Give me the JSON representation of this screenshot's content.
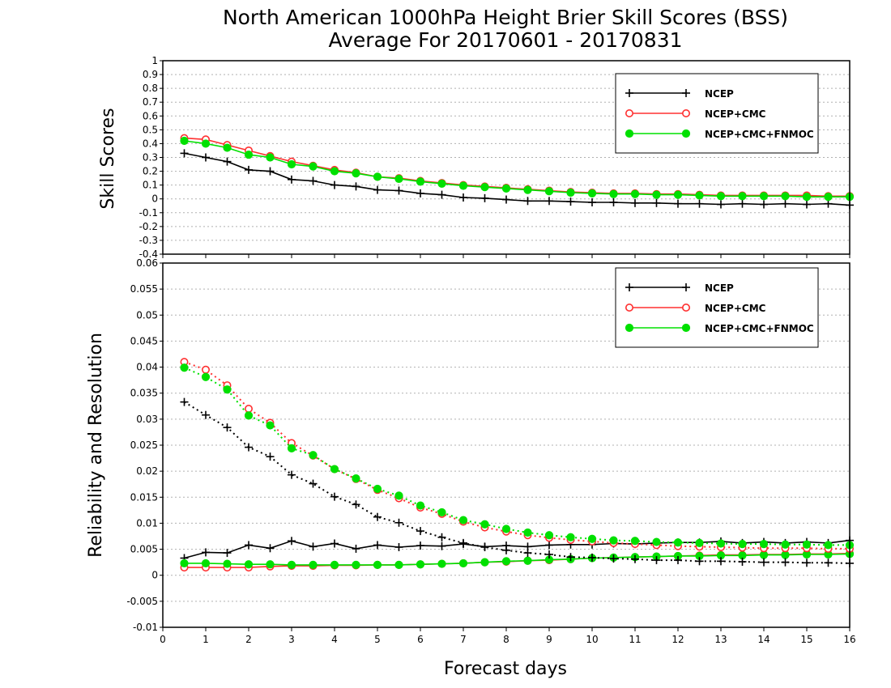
{
  "chart_title": {
    "line1": "North American 1000hPa Height Brier Skill Scores (BSS)",
    "line2": "Average For 20170601 - 20170831"
  },
  "xlabel": "Forecast days",
  "chart_data": [
    {
      "type": "line",
      "title": "",
      "ylabel": "Skill Scores",
      "xlim": [
        0,
        16
      ],
      "ylim": [
        -0.4,
        1
      ],
      "xticks": [
        "0",
        "1",
        "2",
        "3",
        "4",
        "5",
        "6",
        "7",
        "8",
        "9",
        "10",
        "11",
        "12",
        "13",
        "14",
        "15",
        "16"
      ],
      "yticks": [
        "-0.4",
        "-0.3",
        "-0.2",
        "-0.1",
        "0",
        "0.1",
        "0.2",
        "0.3",
        "0.4",
        "0.5",
        "0.6",
        "0.7",
        "0.8",
        "0.9",
        "1"
      ],
      "grid": "dotted horizontal",
      "legend": {
        "placement": "top-right",
        "entries": [
          "NCEP",
          "NCEP+CMC",
          "NCEP+CMC+FNMOC"
        ]
      },
      "x": [
        0.5,
        1,
        1.5,
        2,
        2.5,
        3,
        3.5,
        4,
        4.5,
        5,
        5.5,
        6,
        6.5,
        7,
        7.5,
        8,
        8.5,
        9,
        9.5,
        10,
        10.5,
        11,
        11.5,
        12,
        12.5,
        13,
        13.5,
        14,
        14.5,
        15,
        15.5,
        16
      ],
      "series": [
        {
          "name": "NCEP",
          "color": "#000000",
          "marker": "plus",
          "style": "solid",
          "values": [
            0.33,
            0.3,
            0.27,
            0.21,
            0.2,
            0.14,
            0.13,
            0.1,
            0.09,
            0.065,
            0.06,
            0.04,
            0.03,
            0.01,
            0.005,
            -0.005,
            -0.015,
            -0.015,
            -0.02,
            -0.025,
            -0.025,
            -0.03,
            -0.03,
            -0.035,
            -0.035,
            -0.04,
            -0.035,
            -0.04,
            -0.035,
            -0.04,
            -0.035,
            -0.045
          ]
        },
        {
          "name": "NCEP+CMC",
          "color": "#ff3030",
          "marker": "open-circle",
          "style": "solid",
          "values": [
            0.44,
            0.43,
            0.39,
            0.35,
            0.31,
            0.27,
            0.24,
            0.21,
            0.19,
            0.16,
            0.15,
            0.13,
            0.115,
            0.1,
            0.09,
            0.08,
            0.07,
            0.06,
            0.05,
            0.045,
            0.04,
            0.04,
            0.035,
            0.035,
            0.03,
            0.025,
            0.025,
            0.025,
            0.025,
            0.025,
            0.02,
            0.02
          ]
        },
        {
          "name": "NCEP+CMC+FNMOC",
          "color": "#00e000",
          "marker": "filled-circle",
          "style": "solid",
          "values": [
            0.42,
            0.4,
            0.37,
            0.32,
            0.3,
            0.25,
            0.235,
            0.2,
            0.185,
            0.16,
            0.145,
            0.125,
            0.11,
            0.095,
            0.085,
            0.075,
            0.065,
            0.055,
            0.045,
            0.04,
            0.035,
            0.035,
            0.03,
            0.03,
            0.025,
            0.02,
            0.02,
            0.02,
            0.02,
            0.015,
            0.015,
            0.015
          ]
        }
      ]
    },
    {
      "type": "line",
      "title": "",
      "ylabel": "Reliability and Resolution",
      "xlim": [
        0,
        16
      ],
      "ylim": [
        -0.01,
        0.06
      ],
      "xticks": [
        "0",
        "1",
        "2",
        "3",
        "4",
        "5",
        "6",
        "7",
        "8",
        "9",
        "10",
        "11",
        "12",
        "13",
        "14",
        "15",
        "16"
      ],
      "yticks": [
        "-0.01",
        "-0.005",
        "0",
        "0.005",
        "0.01",
        "0.015",
        "0.02",
        "0.025",
        "0.03",
        "0.035",
        "0.04",
        "0.045",
        "0.05",
        "0.055",
        "0.06"
      ],
      "grid": "dotted horizontal",
      "legend": {
        "placement": "top-right",
        "entries": [
          "NCEP",
          "NCEP+CMC",
          "NCEP+CMC+FNMOC"
        ]
      },
      "x": [
        0.5,
        1,
        1.5,
        2,
        2.5,
        3,
        3.5,
        4,
        4.5,
        5,
        5.5,
        6,
        6.5,
        7,
        7.5,
        8,
        8.5,
        9,
        9.5,
        10,
        10.5,
        11,
        11.5,
        12,
        12.5,
        13,
        13.5,
        14,
        14.5,
        15,
        15.5,
        16
      ],
      "series": [
        {
          "name": "NCEP",
          "metric": "reliability",
          "color": "#000000",
          "marker": "plus",
          "style": "solid",
          "values": [
            0.0033,
            0.0044,
            0.0043,
            0.0058,
            0.0052,
            0.0066,
            0.0055,
            0.0061,
            0.0051,
            0.0058,
            0.0054,
            0.0057,
            0.0056,
            0.006,
            0.0055,
            0.0057,
            0.0055,
            0.0058,
            0.0059,
            0.0059,
            0.0061,
            0.006,
            0.0062,
            0.0063,
            0.0063,
            0.0065,
            0.0062,
            0.0064,
            0.0062,
            0.0064,
            0.0062,
            0.0067
          ]
        },
        {
          "name": "NCEP+CMC",
          "metric": "reliability",
          "color": "#ff3030",
          "marker": "open-circle",
          "style": "solid",
          "values": [
            0.0015,
            0.0015,
            0.0015,
            0.0015,
            0.0017,
            0.0018,
            0.0018,
            0.0019,
            0.0019,
            0.002,
            0.002,
            0.0021,
            0.0022,
            0.0023,
            0.0025,
            0.0026,
            0.0028,
            0.0029,
            0.0031,
            0.0033,
            0.0034,
            0.0035,
            0.0036,
            0.0037,
            0.0038,
            0.0039,
            0.0039,
            0.004,
            0.004,
            0.0041,
            0.0041,
            0.0042
          ]
        },
        {
          "name": "NCEP+CMC+FNMOC",
          "metric": "reliability",
          "color": "#00e000",
          "marker": "filled-circle",
          "style": "solid",
          "values": [
            0.0023,
            0.0023,
            0.0022,
            0.0021,
            0.0021,
            0.002,
            0.002,
            0.002,
            0.002,
            0.002,
            0.002,
            0.0021,
            0.0022,
            0.0023,
            0.0025,
            0.0027,
            0.0028,
            0.003,
            0.0031,
            0.0033,
            0.0034,
            0.0035,
            0.0036,
            0.0037,
            0.0037,
            0.0038,
            0.0038,
            0.0039,
            0.0039,
            0.004,
            0.004,
            0.0041
          ]
        },
        {
          "name": "NCEP",
          "metric": "resolution",
          "color": "#000000",
          "marker": "plus",
          "style": "dotted",
          "values": [
            0.0333,
            0.0308,
            0.0284,
            0.0246,
            0.0228,
            0.0193,
            0.0176,
            0.0151,
            0.0136,
            0.0112,
            0.0101,
            0.0085,
            0.0073,
            0.0062,
            0.0054,
            0.0048,
            0.0043,
            0.004,
            0.0035,
            0.0034,
            0.0032,
            0.0031,
            0.0029,
            0.0029,
            0.0027,
            0.0027,
            0.0026,
            0.0025,
            0.0025,
            0.0024,
            0.0024,
            0.0023
          ]
        },
        {
          "name": "NCEP+CMC",
          "metric": "resolution",
          "color": "#ff3030",
          "marker": "open-circle",
          "style": "dotted",
          "values": [
            0.041,
            0.0395,
            0.0365,
            0.032,
            0.0293,
            0.0254,
            0.023,
            0.0204,
            0.0185,
            0.0164,
            0.0148,
            0.013,
            0.0118,
            0.0103,
            0.0092,
            0.0084,
            0.0077,
            0.0072,
            0.0068,
            0.0065,
            0.0062,
            0.006,
            0.0058,
            0.0056,
            0.0055,
            0.0054,
            0.0053,
            0.0052,
            0.0052,
            0.0052,
            0.0051,
            0.0051
          ]
        },
        {
          "name": "NCEP+CMC+FNMOC",
          "metric": "resolution",
          "color": "#00e000",
          "marker": "filled-circle",
          "style": "dotted",
          "values": [
            0.0399,
            0.0381,
            0.0357,
            0.0307,
            0.0288,
            0.0244,
            0.0231,
            0.0204,
            0.0186,
            0.0166,
            0.0153,
            0.0134,
            0.0121,
            0.0106,
            0.0098,
            0.0089,
            0.0082,
            0.0077,
            0.0073,
            0.007,
            0.0067,
            0.0066,
            0.0064,
            0.0063,
            0.0062,
            0.0061,
            0.006,
            0.006,
            0.0059,
            0.0059,
            0.0058,
            0.0058
          ]
        }
      ]
    }
  ]
}
